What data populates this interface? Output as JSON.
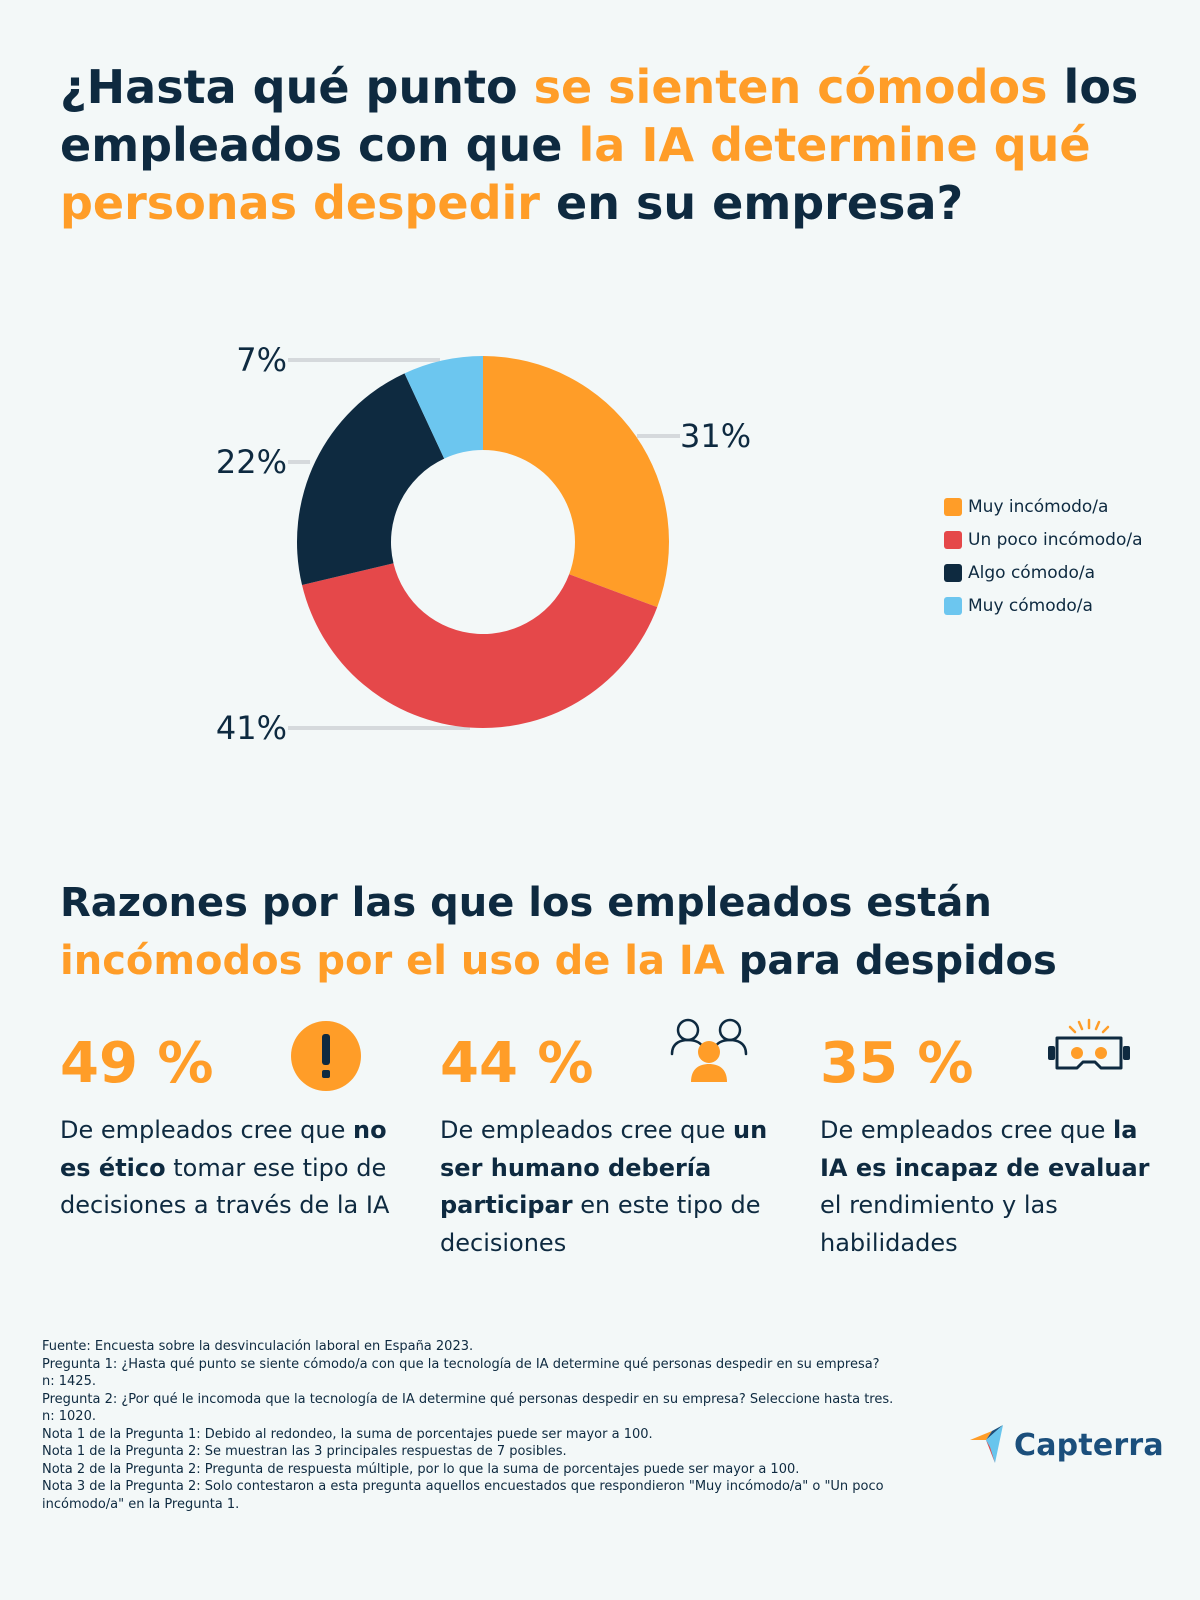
{
  "title": {
    "part1": "¿Hasta qué punto ",
    "part2": "se sienten cómodos",
    "part3": " los empleados con que ",
    "part4": "la IA determine qué personas despedir",
    "part5": " en su empresa?"
  },
  "colors": {
    "orange": "#ff9d28",
    "red": "#e5484a",
    "navy": "#0e2a40",
    "light_blue": "#6cc6ef",
    "leader": "#d5d9dc",
    "background": "#f3f8f8"
  },
  "chart_data": {
    "type": "pie",
    "variant": "donut",
    "title": "¿Hasta qué punto se sienten cómodos los empleados con que la IA determine qué personas despedir en su empresa?",
    "categories": [
      "Muy incómodo/a",
      "Un poco incómodo/a",
      "Algo cómodo/a",
      "Muy cómodo/a"
    ],
    "values": [
      31,
      41,
      22,
      7
    ],
    "value_labels": [
      "31%",
      "41%",
      "22%",
      "7%"
    ],
    "colors": [
      "#ff9d28",
      "#e5484a",
      "#0e2a40",
      "#6cc6ef"
    ],
    "start_angle_deg": 0,
    "direction": "clockwise",
    "legend_position": "right"
  },
  "legend": {
    "items": [
      {
        "label": "Muy incómodo/a",
        "color": "#ff9d28"
      },
      {
        "label": "Un poco incómodo/a",
        "color": "#e5484a"
      },
      {
        "label": "Algo cómodo/a",
        "color": "#0e2a40"
      },
      {
        "label": "Muy cómodo/a",
        "color": "#6cc6ef"
      }
    ]
  },
  "section": {
    "part1": "Razones por las que los empleados están ",
    "part2": "incómodos por el uso de la IA",
    "part3": " para despidos"
  },
  "stats": [
    {
      "value": "49 %",
      "text_before": "De empleados cree que ",
      "text_bold": "no es ético",
      "text_after": " tomar ese tipo de decisiones a través de la IA",
      "icon": "exclamation-icon"
    },
    {
      "value": "44 %",
      "text_before": "De empleados cree que ",
      "text_bold": "un ser humano debería participar",
      "text_after": " en este tipo de decisiones",
      "icon": "people-icon"
    },
    {
      "value": "35 %",
      "text_before": "De empleados cree que ",
      "text_bold": "la IA es incapaz de evaluar",
      "text_after": " el rendimiento y las habilidades",
      "icon": "vr-headset-icon"
    }
  ],
  "footnotes": [
    "Fuente: Encuesta sobre la desvinculación laboral en España 2023.",
    "Pregunta 1: ¿Hasta qué punto se siente cómodo/a con que la tecnología de IA determine qué personas despedir en su empresa?",
    "n: 1425.",
    "Pregunta 2: ¿Por qué le incomoda que la tecnología de IA determine qué personas despedir en su empresa? Seleccione hasta tres.",
    "n: 1020.",
    "Nota 1 de la Pregunta 1: Debido al redondeo, la suma de porcentajes puede ser mayor a 100.",
    "Nota 1 de la Pregunta 2: Se muestran las 3 principales respuestas de 7 posibles.",
    "Nota 2 de la Pregunta 2: Pregunta de respuesta múltiple, por lo que la suma de porcentajes puede ser mayor a 100.",
    "Nota 3 de la Pregunta 2: Solo contestaron a esta pregunta aquellos encuestados que respondieron \"Muy incómodo/a\" o \"Un poco incómodo/a\" en la Pregunta 1."
  ],
  "logo": {
    "text": "Capterra",
    "icon": "capterra-arrow-icon"
  }
}
